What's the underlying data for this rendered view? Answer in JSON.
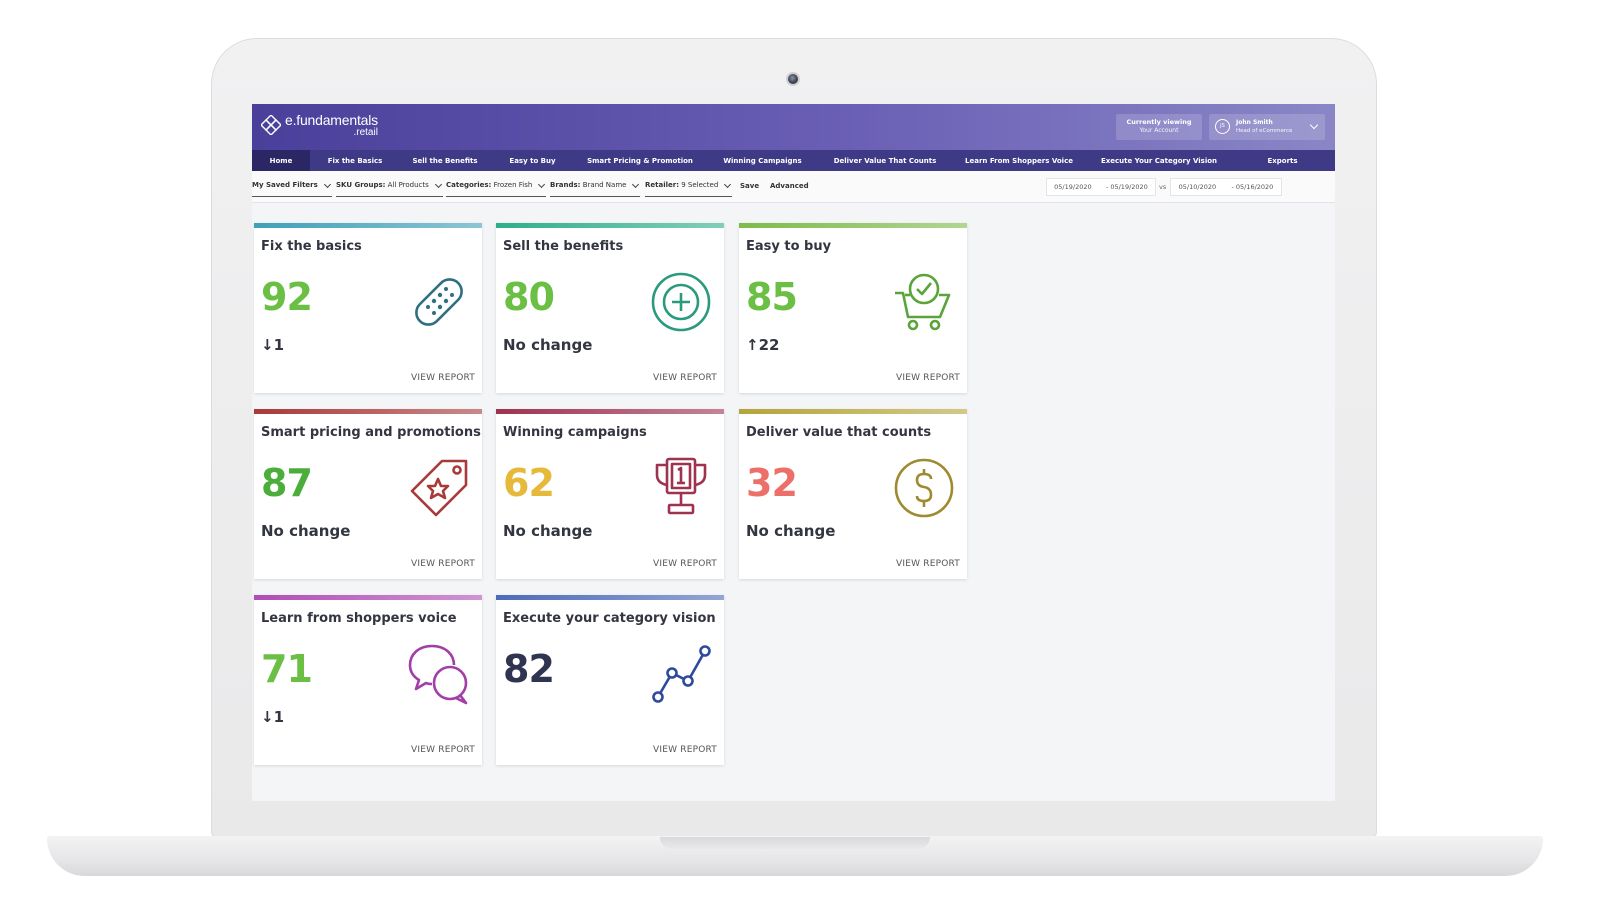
{
  "logo": {
    "main": "e.fundamentals",
    "sub": ".retail"
  },
  "header": {
    "viewing_line1": "Currently viewing",
    "viewing_line2": "Your Account",
    "user_initials": "JS",
    "user_name": "John Smith",
    "user_role": "Head of eCommerce"
  },
  "nav": [
    "Home",
    "Fix the Basics",
    "Sell the Benefits",
    "Easy to Buy",
    "Smart Pricing & Promotion",
    "Winning Campaigns",
    "Deliver Value That Counts",
    "Learn From Shoppers Voice",
    "Execute Your Category Vision",
    "Exports"
  ],
  "filters": {
    "saved": "My Saved Filters",
    "sku_label": "SKU Groups:",
    "sku_value": "All Products",
    "cat_label": "Categories:",
    "cat_value": "Frozen Fish",
    "brand_label": "Brands:",
    "brand_value": "Brand Name",
    "retailer_label": "Retailer:",
    "retailer_value": "9 Selected",
    "save": "Save",
    "advanced": "Advanced",
    "range1_start": "05/19/2020",
    "range1_end": "- 05/19/2020",
    "vs": "vs",
    "range2_start": "05/10/2020",
    "range2_end": "- 05/16/2020"
  },
  "cards": [
    {
      "title": "Fix the basics",
      "score": "92",
      "change": "↓1",
      "link": "VIEW REPORT",
      "icon": "bandage-icon",
      "score_color": "#6cbf45",
      "bar_color": "#3fa0b8"
    },
    {
      "title": "Sell the benefits",
      "score": "80",
      "change": "No change",
      "link": "VIEW REPORT",
      "icon": "plus-circle-icon",
      "score_color": "#6cbf45",
      "bar_color": "#2fae8a"
    },
    {
      "title": "Easy to buy",
      "score": "85",
      "change": "↑22",
      "link": "VIEW REPORT",
      "icon": "cart-check-icon",
      "score_color": "#6cbf45",
      "bar_color": "#7dbb4a"
    },
    {
      "title": "Smart pricing and promotions",
      "score": "87",
      "change": "No change",
      "link": "VIEW REPORT",
      "icon": "price-tag-icon",
      "score_color": "#4cae3a",
      "bar_color": "#a83a3a"
    },
    {
      "title": "Winning campaigns",
      "score": "62",
      "change": "No change",
      "link": "VIEW REPORT",
      "icon": "trophy-icon",
      "score_color": "#e6b93a",
      "bar_color": "#9e3350"
    },
    {
      "title": "Deliver value that counts",
      "score": "32",
      "change": "No change",
      "link": "VIEW REPORT",
      "icon": "dollar-coin-icon",
      "score_color": "#ec6f6a",
      "bar_color": "#b4a53a"
    },
    {
      "title": "Learn from shoppers voice",
      "score": "71",
      "change": "↓1",
      "link": "VIEW REPORT",
      "icon": "chat-bubbles-icon",
      "score_color": "#6cbf45",
      "bar_color": "#b04db6"
    },
    {
      "title": "Execute your category vision",
      "score": "82",
      "change": "",
      "link": "VIEW REPORT",
      "icon": "line-chart-icon",
      "score_color": "#2f3550",
      "bar_color": "#4c6ab8"
    }
  ]
}
